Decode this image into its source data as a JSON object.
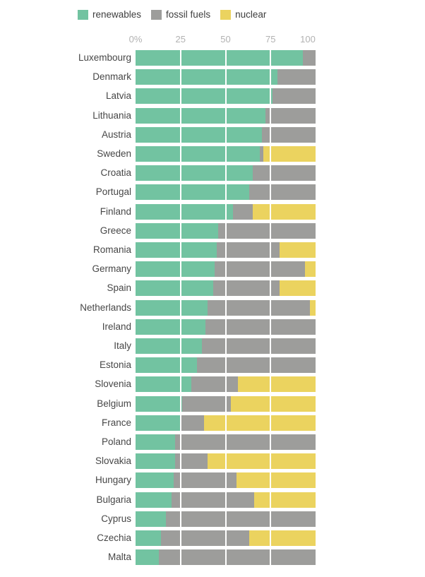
{
  "chart_data": {
    "type": "bar",
    "orientation": "horizontal",
    "stacked": true,
    "unit": "%",
    "title": "",
    "xlabel": "",
    "ylabel": "",
    "xlim": [
      0,
      100
    ],
    "grid": {
      "lines_at": [
        25,
        50,
        75
      ],
      "color": "#ffffff"
    },
    "legend_position": "top-left",
    "x_ticks": [
      "0%",
      "25",
      "50",
      "75",
      "100"
    ],
    "x_tick_values": [
      0,
      25,
      50,
      75,
      100
    ],
    "legend": [
      {
        "label": "renewables",
        "color": "#72c3a1"
      },
      {
        "label": "fossil fuels",
        "color": "#9d9d9b"
      },
      {
        "label": "nuclear",
        "color": "#ebd35f"
      }
    ],
    "categories": [
      "Luxembourg",
      "Denmark",
      "Latvia",
      "Lithuania",
      "Austria",
      "Sweden",
      "Croatia",
      "Portugal",
      "Finland",
      "Greece",
      "Romania",
      "Germany",
      "Spain",
      "Netherlands",
      "Ireland",
      "Italy",
      "Estonia",
      "Slovenia",
      "Belgium",
      "France",
      "Poland",
      "Slovakia",
      "Hungary",
      "Bulgaria",
      "Cyprus",
      "Czechia",
      "Malta"
    ],
    "series": [
      {
        "name": "renewables",
        "color": "#72c3a1",
        "values": [
          93,
          79,
          76,
          72,
          70,
          69,
          65,
          63,
          54,
          46,
          45,
          44,
          43,
          40,
          39,
          37,
          34,
          31,
          26,
          25,
          22,
          22,
          21,
          20,
          17,
          14,
          13
        ]
      },
      {
        "name": "fossil fuels",
        "color": "#9d9d9b",
        "values": [
          7,
          21,
          24,
          28,
          30,
          2,
          35,
          37,
          11,
          54,
          35,
          50,
          37,
          57,
          61,
          63,
          66,
          26,
          27,
          13,
          78,
          18,
          35,
          46,
          83,
          49,
          87
        ]
      },
      {
        "name": "nuclear",
        "color": "#ebd35f",
        "values": [
          0,
          0,
          0,
          0,
          0,
          29,
          0,
          0,
          35,
          0,
          20,
          6,
          20,
          3,
          0,
          0,
          0,
          43,
          47,
          62,
          0,
          60,
          44,
          34,
          0,
          37,
          0
        ]
      }
    ],
    "colors": {
      "renewables": "#72c3a1",
      "fossil_fuels": "#9d9d9b",
      "nuclear": "#ebd35f",
      "tick_text": "#b2b2b2",
      "label_text": "#474747",
      "background": "#ffffff"
    }
  }
}
